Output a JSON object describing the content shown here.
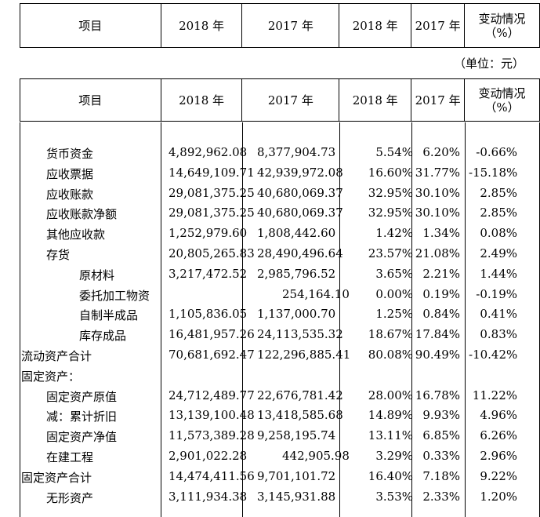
{
  "header": {
    "col_item": "项目",
    "col_2018_amount": "2018 年",
    "col_2017_amount": "2017 年",
    "col_2018_ratio": "2018 年",
    "col_2017_ratio": "2017 年",
    "col_change": "变动情况（%）"
  },
  "unit_label": "（单位：元）",
  "rows": [
    {
      "label": "货币资金",
      "a2018": "4,892,962.08",
      "a2017": "8,377,904.73",
      "r2018": "5.54%",
      "r2017": "6.20%",
      "chg": "-0.66%"
    },
    {
      "label": "应收票据",
      "a2018": "14,649,109.71",
      "a2017": "42,939,972.08",
      "r2018": "16.60%",
      "r2017": "31.77%",
      "chg": "-15.18%"
    },
    {
      "label": "应收账款",
      "a2018": "29,081,375.25",
      "a2017": "40,680,069.37",
      "r2018": "32.95%",
      "r2017": "30.10%",
      "chg": "2.85%"
    },
    {
      "label": "应收账款净额",
      "a2018": "29,081,375.25",
      "a2017": "40,680,069.37",
      "r2018": "32.95%",
      "r2017": "30.10%",
      "chg": "2.85%"
    },
    {
      "label": "其他应收款",
      "a2018": "1,252,979.60",
      "a2017": "1,808,442.60",
      "r2018": "1.42%",
      "r2017": "1.34%",
      "chg": "0.08%"
    },
    {
      "label": "存货",
      "a2018": "20,805,265.83",
      "a2017": "28,490,496.64",
      "r2018": "23.57%",
      "r2017": "21.08%",
      "chg": "2.49%"
    },
    {
      "label": "原材料",
      "a2018": "3,217,472.52",
      "a2017": "2,985,796.52",
      "r2018": "3.65%",
      "r2017": "2.21%",
      "chg": "1.44%"
    },
    {
      "label": "委托加工物资",
      "a2018": "",
      "a2017": "254,164.10",
      "r2018": "0.00%",
      "r2017": "0.19%",
      "chg": "-0.19%"
    },
    {
      "label": "自制半成品",
      "a2018": "1,105,836.05",
      "a2017": "1,137,000.70",
      "r2018": "1.25%",
      "r2017": "0.84%",
      "chg": "0.41%"
    },
    {
      "label": "库存成品",
      "a2018": "16,481,957.26",
      "a2017": "24,113,535.32",
      "r2018": "18.67%",
      "r2017": "17.84%",
      "chg": "0.83%"
    },
    {
      "label": "流动资产合计",
      "a2018": "70,681,692.47",
      "a2017": "122,296,885.41",
      "r2018": "80.08%",
      "r2017": "90.49%",
      "chg": "-10.42%"
    },
    {
      "label": "固定资产：",
      "a2018": "",
      "a2017": "",
      "r2018": "",
      "r2017": "",
      "chg": ""
    },
    {
      "label": "固定资产原值",
      "a2018": "24,712,489.77",
      "a2017": "22,676,781.42",
      "r2018": "28.00%",
      "r2017": "16.78%",
      "chg": "11.22%"
    },
    {
      "label": "减：累计折旧",
      "a2018": "13,139,100.48",
      "a2017": "13,418,585.68",
      "r2018": "14.89%",
      "r2017": "9.93%",
      "chg": "4.96%"
    },
    {
      "label": "固定资产净值",
      "a2018": "11,573,389.28",
      "a2017": "9,258,195.74",
      "r2018": "13.11%",
      "r2017": "6.85%",
      "chg": "6.26%"
    },
    {
      "label": "在建工程",
      "a2018": "2,901,022.28",
      "a2017": "442,905.98",
      "r2018": "3.29%",
      "r2017": "0.33%",
      "chg": "2.96%"
    },
    {
      "label": "固定资产合计",
      "a2018": "14,474,411.56",
      "a2017": "9,701,101.72",
      "r2018": "16.40%",
      "r2017": "7.18%",
      "chg": "9.22%"
    },
    {
      "label": "无形资产",
      "a2018": "3,111,934.38",
      "a2017": "3,145,931.88",
      "r2018": "3.53%",
      "r2017": "2.33%",
      "chg": "1.20%"
    }
  ]
}
